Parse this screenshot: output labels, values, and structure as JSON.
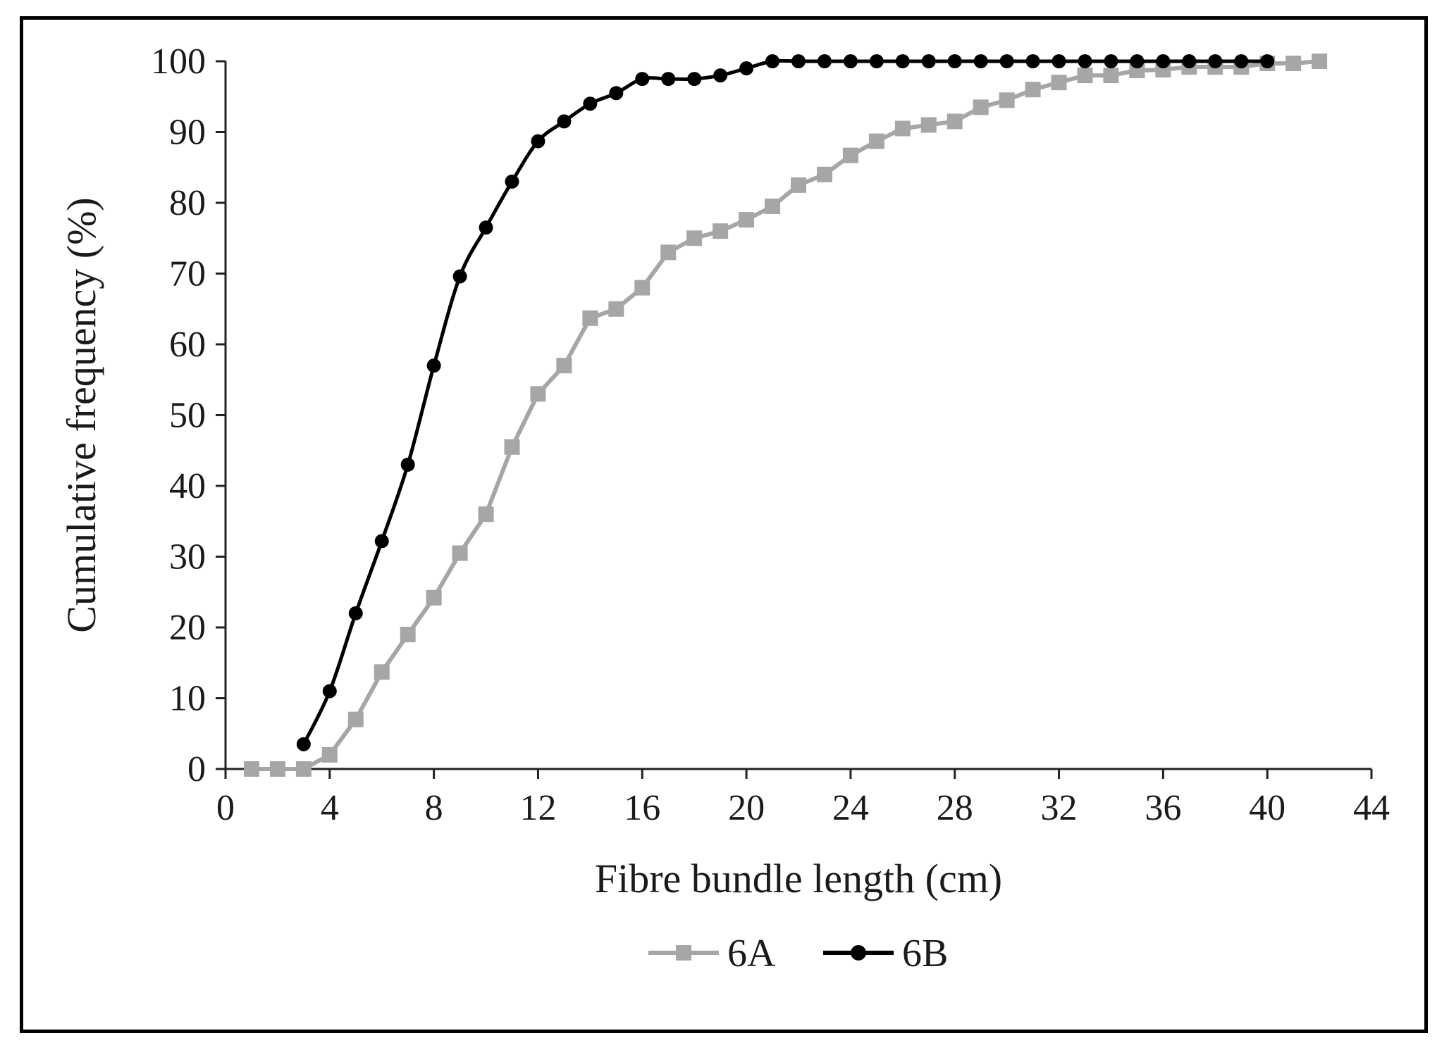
{
  "chart_data": {
    "type": "line",
    "title": "",
    "xlabel": "Fibre bundle length (cm)",
    "ylabel": "Cumulative frequency (%)",
    "xlim": [
      0,
      44
    ],
    "ylim": [
      0,
      100
    ],
    "xticks": [
      0,
      4,
      8,
      12,
      16,
      20,
      24,
      28,
      32,
      36,
      40,
      44
    ],
    "yticks": [
      0,
      10,
      20,
      30,
      40,
      50,
      60,
      70,
      80,
      90,
      100
    ],
    "grid": false,
    "legend_position": "bottom-center",
    "series": [
      {
        "name": "6A",
        "color": "#a6a6a6",
        "marker": "square",
        "x": [
          1,
          2,
          3,
          4,
          5,
          6,
          7,
          8,
          9,
          10,
          11,
          12,
          13,
          14,
          15,
          16,
          17,
          18,
          19,
          20,
          21,
          22,
          23,
          24,
          25,
          26,
          27,
          28,
          29,
          30,
          31,
          32,
          33,
          34,
          35,
          36,
          37,
          38,
          39,
          40,
          41,
          42
        ],
        "y": [
          0,
          0,
          0,
          2,
          7,
          13.7,
          19,
          24.2,
          30.5,
          36,
          45.5,
          53,
          57,
          63.7,
          65,
          68,
          73,
          75,
          76,
          77.6,
          79.5,
          82.5,
          84,
          86.7,
          88.7,
          90.5,
          91,
          91.5,
          93.5,
          94.5,
          96,
          97,
          98,
          98,
          98.7,
          98.8,
          99.2,
          99.2,
          99.2,
          99.7,
          99.7,
          100
        ]
      },
      {
        "name": "6B",
        "color": "#000000",
        "marker": "circle",
        "x": [
          3,
          4,
          5,
          6,
          7,
          8,
          9,
          10,
          11,
          12,
          13,
          14,
          15,
          16,
          17,
          18,
          19,
          20,
          21,
          22,
          23,
          24,
          25,
          26,
          27,
          28,
          29,
          30,
          31,
          32,
          33,
          34,
          35,
          36,
          37,
          38,
          39,
          40
        ],
        "y": [
          3.5,
          11,
          22,
          32.2,
          43,
          57,
          69.6,
          76.5,
          83,
          88.7,
          91.5,
          94,
          95.5,
          97.5,
          97.5,
          97.5,
          98,
          99,
          100,
          100,
          100,
          100,
          100,
          100,
          100,
          100,
          100,
          100,
          100,
          100,
          100,
          100,
          100,
          100,
          100,
          100,
          100,
          100
        ]
      }
    ]
  }
}
